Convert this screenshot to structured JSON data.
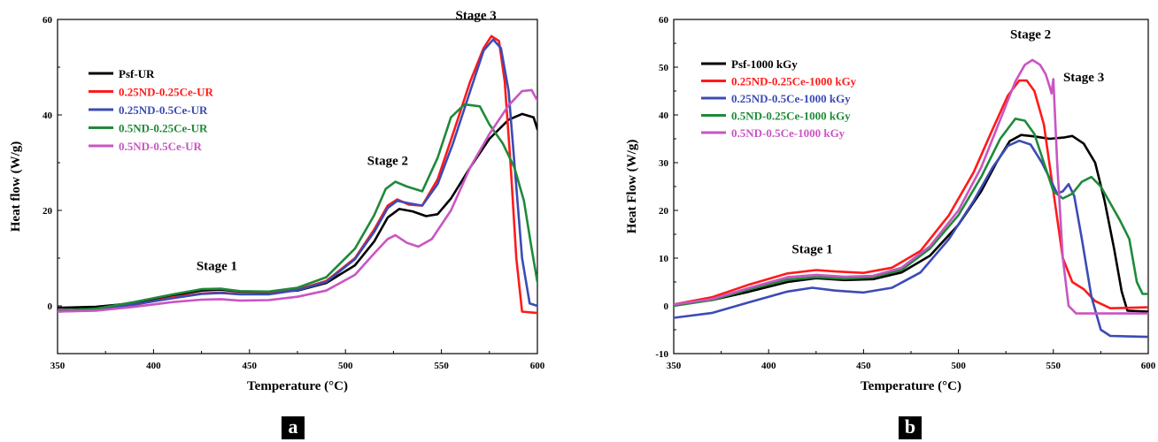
{
  "panels": [
    {
      "label": "a"
    },
    {
      "label": "b"
    }
  ],
  "chart_data": [
    {
      "type": "line",
      "xlabel": "Temperature (°C)",
      "ylabel": "Heat flow (W/g)",
      "xlim": [
        350,
        600
      ],
      "ylim": [
        -10,
        60
      ],
      "xticks": [
        350,
        400,
        450,
        500,
        550,
        600
      ],
      "yticks": [
        0,
        20,
        40,
        60
      ],
      "grid": false,
      "legend_position": "upper-left",
      "annotations": [
        {
          "text": "Stage 1",
          "x": 433,
          "y": 7.5
        },
        {
          "text": "Stage 2",
          "x": 522,
          "y": 29.5
        },
        {
          "text": "Stage 3",
          "x": 568,
          "y": 60
        }
      ],
      "series": [
        {
          "name": "Psf-UR",
          "color": "#000000",
          "points": [
            [
              350,
              -0.4
            ],
            [
              370,
              -0.2
            ],
            [
              390,
              0.6
            ],
            [
              410,
              2.2
            ],
            [
              425,
              3.2
            ],
            [
              435,
              3.4
            ],
            [
              445,
              3.0
            ],
            [
              460,
              2.9
            ],
            [
              475,
              3.2
            ],
            [
              490,
              4.8
            ],
            [
              505,
              8.5
            ],
            [
              515,
              13.5
            ],
            [
              522,
              18.5
            ],
            [
              528,
              20.3
            ],
            [
              535,
              19.8
            ],
            [
              542,
              18.8
            ],
            [
              548,
              19.2
            ],
            [
              555,
              22.5
            ],
            [
              565,
              29
            ],
            [
              575,
              35
            ],
            [
              585,
              39
            ],
            [
              592,
              40.2
            ],
            [
              598,
              39.5
            ],
            [
              600,
              37
            ]
          ]
        },
        {
          "name": "0.25ND-0.25Ce-UR",
          "color": "#ff1a1a",
          "points": [
            [
              350,
              -1.2
            ],
            [
              370,
              -0.9
            ],
            [
              390,
              0.2
            ],
            [
              410,
              1.8
            ],
            [
              425,
              2.6
            ],
            [
              435,
              2.8
            ],
            [
              445,
              2.5
            ],
            [
              460,
              2.5
            ],
            [
              475,
              3.4
            ],
            [
              490,
              5.2
            ],
            [
              505,
              10
            ],
            [
              515,
              16
            ],
            [
              522,
              21
            ],
            [
              527,
              22.3
            ],
            [
              533,
              21.2
            ],
            [
              540,
              21
            ],
            [
              548,
              26.5
            ],
            [
              556,
              36
            ],
            [
              565,
              47
            ],
            [
              572,
              54
            ],
            [
              576,
              56.5
            ],
            [
              580,
              55.5
            ],
            [
              583,
              47
            ],
            [
              586,
              30
            ],
            [
              589,
              10
            ],
            [
              592,
              -1.2
            ],
            [
              600,
              -1.5
            ]
          ]
        },
        {
          "name": "0.25ND-0.5Ce-UR",
          "color": "#3c4bb5",
          "points": [
            [
              350,
              -1
            ],
            [
              370,
              -0.8
            ],
            [
              390,
              0.3
            ],
            [
              410,
              1.6
            ],
            [
              425,
              2.5
            ],
            [
              435,
              2.7
            ],
            [
              445,
              2.4
            ],
            [
              460,
              2.4
            ],
            [
              475,
              3.3
            ],
            [
              490,
              5
            ],
            [
              505,
              9.8
            ],
            [
              515,
              15.5
            ],
            [
              522,
              20.5
            ],
            [
              527,
              22
            ],
            [
              533,
              21.5
            ],
            [
              540,
              21
            ],
            [
              548,
              25.5
            ],
            [
              556,
              34
            ],
            [
              565,
              45
            ],
            [
              572,
              53.5
            ],
            [
              577,
              55.8
            ],
            [
              581,
              54
            ],
            [
              585,
              45
            ],
            [
              588,
              30
            ],
            [
              592,
              10
            ],
            [
              596,
              0.5
            ],
            [
              600,
              0
            ]
          ]
        },
        {
          "name": "0.5ND-0.25Ce-UR",
          "color": "#1f8a3a",
          "points": [
            [
              350,
              -1
            ],
            [
              370,
              -0.6
            ],
            [
              390,
              0.8
            ],
            [
              410,
              2.4
            ],
            [
              425,
              3.5
            ],
            [
              435,
              3.6
            ],
            [
              445,
              3.1
            ],
            [
              460,
              3.0
            ],
            [
              475,
              3.8
            ],
            [
              490,
              6
            ],
            [
              505,
              12
            ],
            [
              515,
              19
            ],
            [
              521,
              24.5
            ],
            [
              526,
              26
            ],
            [
              532,
              25
            ],
            [
              540,
              24
            ],
            [
              548,
              31
            ],
            [
              555,
              39.5
            ],
            [
              562,
              42.2
            ],
            [
              570,
              41.8
            ],
            [
              575,
              38
            ],
            [
              582,
              34
            ],
            [
              588,
              29
            ],
            [
              593,
              22
            ],
            [
              597,
              12
            ],
            [
              600,
              5
            ]
          ]
        },
        {
          "name": "0.5ND-0.5Ce-UR",
          "color": "#c955c3",
          "points": [
            [
              350,
              -1.2
            ],
            [
              370,
              -1
            ],
            [
              390,
              -0.2
            ],
            [
              410,
              0.8
            ],
            [
              425,
              1.3
            ],
            [
              435,
              1.4
            ],
            [
              445,
              1.1
            ],
            [
              460,
              1.2
            ],
            [
              475,
              1.9
            ],
            [
              490,
              3.2
            ],
            [
              505,
              6.5
            ],
            [
              515,
              11
            ],
            [
              522,
              14
            ],
            [
              526,
              14.8
            ],
            [
              532,
              13.2
            ],
            [
              538,
              12.4
            ],
            [
              545,
              14
            ],
            [
              555,
              20
            ],
            [
              565,
              29
            ],
            [
              575,
              36
            ],
            [
              585,
              42
            ],
            [
              592,
              45
            ],
            [
              597,
              45.2
            ],
            [
              600,
              43
            ]
          ]
        }
      ]
    },
    {
      "type": "line",
      "xlabel": "Temperature (°C)",
      "ylabel": "Heat Flow (W/g)",
      "xlim": [
        350,
        600
      ],
      "ylim": [
        -10,
        60
      ],
      "xticks": [
        350,
        400,
        450,
        500,
        550,
        600
      ],
      "yticks": [
        -10,
        0,
        10,
        20,
        30,
        40,
        50,
        60
      ],
      "grid": false,
      "legend_position": "upper-left",
      "annotations": [
        {
          "text": "Stage 1",
          "x": 423,
          "y": 11
        },
        {
          "text": "Stage 2",
          "x": 538,
          "y": 56
        },
        {
          "text": "Stage 3",
          "x": 566,
          "y": 47
        }
      ],
      "series": [
        {
          "name": "Psf-1000 kGy",
          "color": "#000000",
          "points": [
            [
              350,
              0.3
            ],
            [
              370,
              1.2
            ],
            [
              390,
              3
            ],
            [
              410,
              5
            ],
            [
              425,
              5.8
            ],
            [
              440,
              5.4
            ],
            [
              455,
              5.6
            ],
            [
              470,
              7
            ],
            [
              485,
              10.5
            ],
            [
              500,
              17
            ],
            [
              512,
              24
            ],
            [
              520,
              30
            ],
            [
              527,
              34.5
            ],
            [
              533,
              35.8
            ],
            [
              540,
              35.5
            ],
            [
              548,
              35
            ],
            [
              556,
              35.3
            ],
            [
              560,
              35.6
            ],
            [
              566,
              34
            ],
            [
              572,
              30
            ],
            [
              577,
              22
            ],
            [
              582,
              12
            ],
            [
              586,
              3
            ],
            [
              589,
              -1
            ],
            [
              600,
              -1.2
            ]
          ]
        },
        {
          "name": "0.25ND-0.25Ce-1000 kGy",
          "color": "#ff1a1a",
          "points": [
            [
              350,
              0.3
            ],
            [
              370,
              1.8
            ],
            [
              390,
              4.5
            ],
            [
              410,
              6.8
            ],
            [
              425,
              7.5
            ],
            [
              435,
              7.2
            ],
            [
              450,
              6.9
            ],
            [
              465,
              8
            ],
            [
              480,
              11.5
            ],
            [
              495,
              19
            ],
            [
              508,
              28
            ],
            [
              518,
              37
            ],
            [
              526,
              44
            ],
            [
              532,
              47.2
            ],
            [
              536,
              47.2
            ],
            [
              540,
              45
            ],
            [
              545,
              38
            ],
            [
              550,
              24
            ],
            [
              555,
              10
            ],
            [
              560,
              5
            ],
            [
              566,
              3.5
            ],
            [
              572,
              1
            ],
            [
              580,
              -0.5
            ],
            [
              600,
              -0.3
            ]
          ]
        },
        {
          "name": "0.25ND-0.5Ce-1000 kGy",
          "color": "#3c4bb5",
          "points": [
            [
              350,
              -2.5
            ],
            [
              370,
              -1.5
            ],
            [
              390,
              0.8
            ],
            [
              410,
              3
            ],
            [
              423,
              3.8
            ],
            [
              435,
              3.2
            ],
            [
              450,
              2.8
            ],
            [
              465,
              3.8
            ],
            [
              480,
              7
            ],
            [
              495,
              14
            ],
            [
              508,
              22
            ],
            [
              518,
              29
            ],
            [
              526,
              33.5
            ],
            [
              532,
              34.6
            ],
            [
              538,
              33.8
            ],
            [
              544,
              30
            ],
            [
              549,
              26
            ],
            [
              552,
              23.5
            ],
            [
              555,
              24
            ],
            [
              558,
              25.5
            ],
            [
              561,
              23
            ],
            [
              565,
              14
            ],
            [
              570,
              2
            ],
            [
              575,
              -5
            ],
            [
              580,
              -6.3
            ],
            [
              600,
              -6.5
            ]
          ]
        },
        {
          "name": "0.5ND-0.25Ce-1000 kGy",
          "color": "#1f8a3a",
          "points": [
            [
              350,
              0
            ],
            [
              370,
              1.2
            ],
            [
              390,
              3.5
            ],
            [
              410,
              5.5
            ],
            [
              425,
              6
            ],
            [
              440,
              5.7
            ],
            [
              455,
              6
            ],
            [
              470,
              7.5
            ],
            [
              485,
              12
            ],
            [
              500,
              19
            ],
            [
              512,
              27
            ],
            [
              522,
              35
            ],
            [
              530,
              39.2
            ],
            [
              535,
              38.8
            ],
            [
              540,
              36
            ],
            [
              545,
              30
            ],
            [
              550,
              24
            ],
            [
              555,
              22.5
            ],
            [
              560,
              23.5
            ],
            [
              565,
              26
            ],
            [
              570,
              27
            ],
            [
              575,
              25
            ],
            [
              580,
              21.5
            ],
            [
              585,
              18
            ],
            [
              590,
              14
            ],
            [
              594,
              5
            ],
            [
              597,
              2.5
            ],
            [
              600,
              2.5
            ]
          ]
        },
        {
          "name": "0.5ND-0.5Ce-1000 kGy",
          "color": "#c955c3",
          "points": [
            [
              350,
              0.3
            ],
            [
              370,
              1.4
            ],
            [
              390,
              3.8
            ],
            [
              410,
              6
            ],
            [
              425,
              6.5
            ],
            [
              440,
              6.1
            ],
            [
              455,
              6.3
            ],
            [
              470,
              8
            ],
            [
              485,
              12.5
            ],
            [
              500,
              20
            ],
            [
              512,
              29
            ],
            [
              522,
              39
            ],
            [
              530,
              47
            ],
            [
              535,
              50.5
            ],
            [
              539,
              51.5
            ],
            [
              543,
              50.5
            ],
            [
              546,
              48.5
            ],
            [
              548,
              46
            ],
            [
              549,
              44.5
            ],
            [
              550,
              47.5
            ],
            [
              552,
              30
            ],
            [
              555,
              10
            ],
            [
              558,
              0
            ],
            [
              562,
              -1.6
            ],
            [
              600,
              -1.6
            ]
          ]
        }
      ]
    }
  ]
}
